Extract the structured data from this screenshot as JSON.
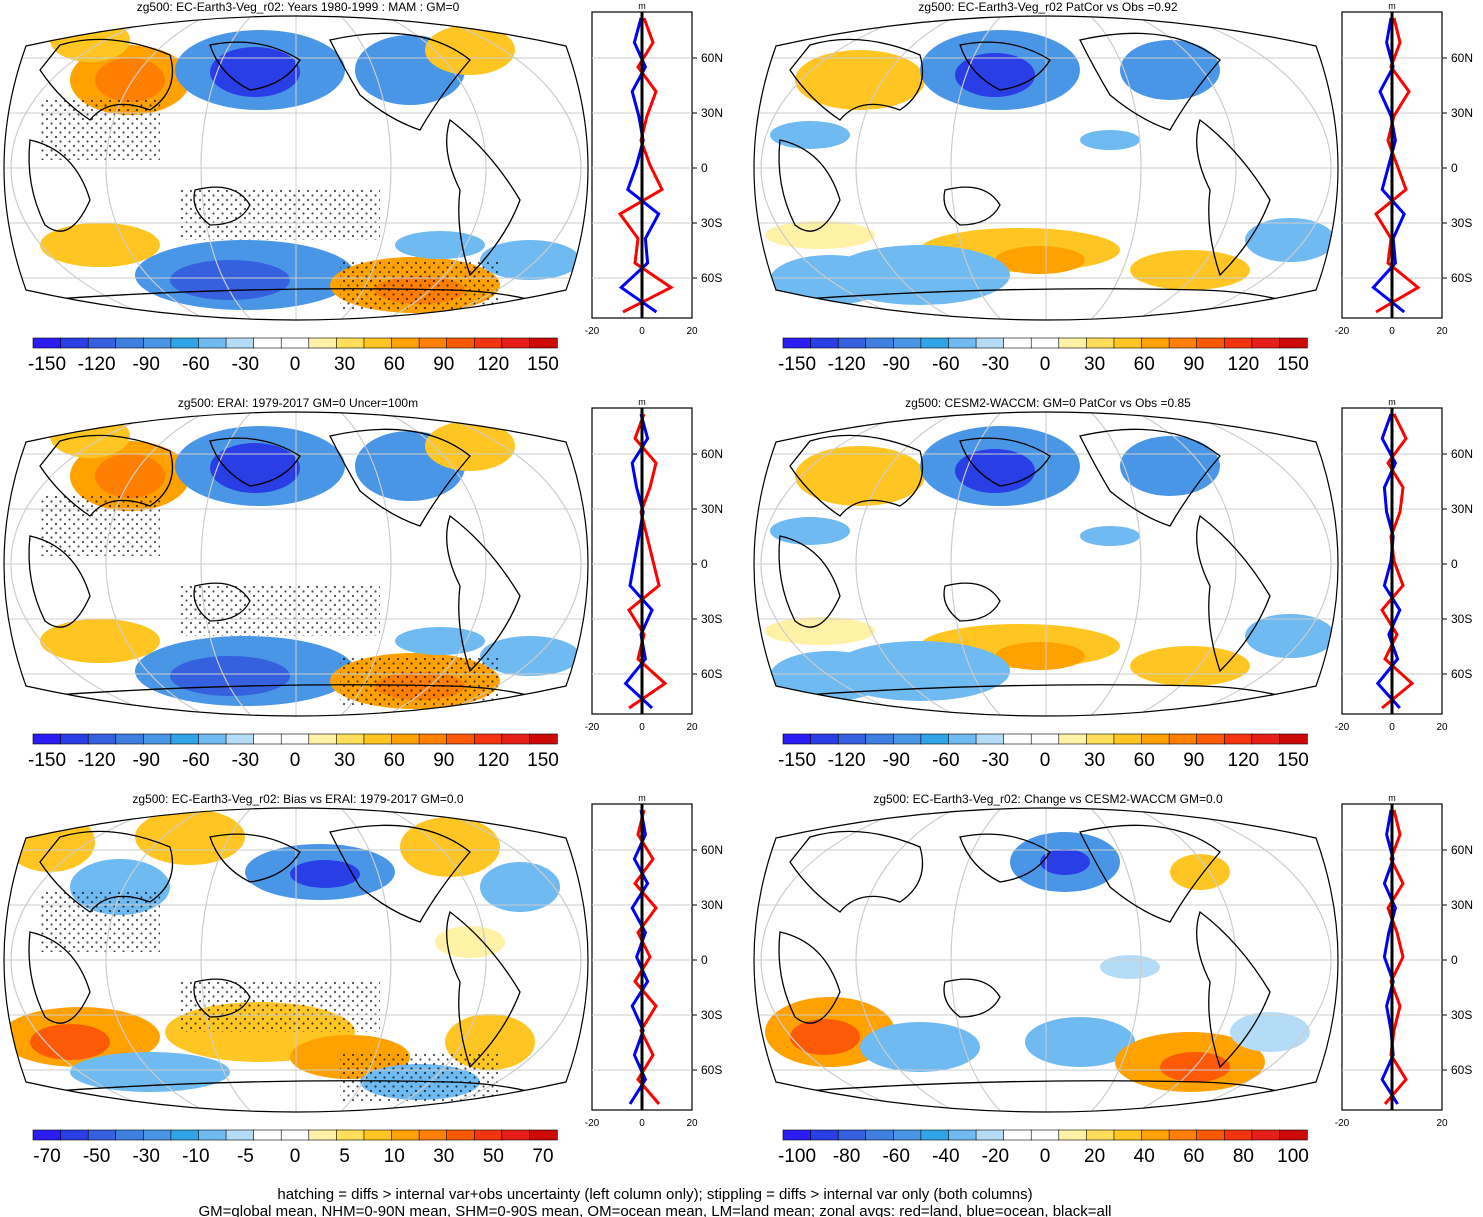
{
  "colors": {
    "land_line": "#ff0000",
    "ocean_line": "#0000ff",
    "all_line": "#000000",
    "palette": [
      "#2b1bf5",
      "#2a3ee6",
      "#3560de",
      "#3f7fe0",
      "#4a96e6",
      "#2fa5e8",
      "#6fbaf0",
      "#b5dcf7",
      "#ffffff",
      "#ffffff",
      "#fff2a6",
      "#ffdf5c",
      "#ffc623",
      "#ffa200",
      "#ff8000",
      "#fd5a08",
      "#f53510",
      "#e81e18",
      "#cc0a0a"
    ]
  },
  "panels": [
    {
      "id": "p1",
      "title": "zg500: EC-Earth3-Veg_r02: Years 1980-1999 : MAM : GM=0",
      "colorbar_labels": [
        "-150",
        "-120",
        "-90",
        "-60",
        "-30",
        "0",
        "30",
        "60",
        "90",
        "120",
        "150"
      ],
      "profile_unit": "m",
      "profile_x_ticks": [
        "-20",
        "0",
        "20"
      ],
      "lat_ticks": [
        "60N",
        "30N",
        "0",
        "30S",
        "60S"
      ],
      "hatched": true
    },
    {
      "id": "p2",
      "title": "zg500: EC-Earth3-Veg_r02 PatCor vs Obs =0.92",
      "colorbar_labels": [
        "-150",
        "-120",
        "-90",
        "-60",
        "-30",
        "0",
        "30",
        "60",
        "90",
        "120",
        "150"
      ],
      "profile_unit": "m",
      "profile_x_ticks": [
        "-20",
        "0",
        "20"
      ],
      "lat_ticks": [
        "60N",
        "30N",
        "0",
        "30S",
        "60S"
      ],
      "hatched": false
    },
    {
      "id": "p3",
      "title": "zg500: ERAI: 1979-2017 GM=0 Uncer=100m",
      "colorbar_labels": [
        "-150",
        "-120",
        "-90",
        "-60",
        "-30",
        "0",
        "30",
        "60",
        "90",
        "120",
        "150"
      ],
      "profile_unit": "m",
      "profile_x_ticks": [
        "-20",
        "0",
        "20"
      ],
      "lat_ticks": [
        "60N",
        "30N",
        "0",
        "30S",
        "60S"
      ],
      "hatched": true
    },
    {
      "id": "p4",
      "title": "zg500: CESM2-WACCM: GM=0 PatCor vs Obs =0.85",
      "colorbar_labels": [
        "-150",
        "-120",
        "-90",
        "-60",
        "-30",
        "0",
        "30",
        "60",
        "90",
        "120",
        "150"
      ],
      "profile_unit": "m",
      "profile_x_ticks": [
        "-20",
        "0",
        "20"
      ],
      "lat_ticks": [
        "60N",
        "30N",
        "0",
        "30S",
        "60S"
      ],
      "hatched": false
    },
    {
      "id": "p5",
      "title": "zg500: EC-Earth3-Veg_r02: Bias vs ERAI: 1979-2017 GM=0.0",
      "colorbar_labels": [
        "-70",
        "-50",
        "-30",
        "-10",
        "-5",
        "0",
        "5",
        "10",
        "30",
        "50",
        "70"
      ],
      "profile_unit": "m",
      "profile_x_ticks": [
        "-20",
        "0",
        "20"
      ],
      "lat_ticks": [
        "60N",
        "30N",
        "0",
        "30S",
        "60S"
      ],
      "hatched": true
    },
    {
      "id": "p6",
      "title": "zg500: EC-Earth3-Veg_r02: Change vs CESM2-WACCM GM=0.0",
      "colorbar_labels": [
        "-100",
        "-80",
        "-60",
        "-40",
        "-20",
        "0",
        "20",
        "40",
        "60",
        "80",
        "100"
      ],
      "profile_unit": "m",
      "profile_x_ticks": [
        "-20",
        "20"
      ],
      "lat_ticks": [
        "60N",
        "30N",
        "0",
        "30S",
        "60S"
      ],
      "hatched": false
    }
  ],
  "footer": {
    "line1": "hatching = diffs > internal var+obs uncertainty (left column only); stippling = diffs > internal var only (both columns)",
    "line2": "GM=global mean, NHM=0-90N mean, SHM=0-90S mean, OM=ocean mean, LM=land mean; zonal avgs: red=land, blue=ocean, black=all"
  }
}
